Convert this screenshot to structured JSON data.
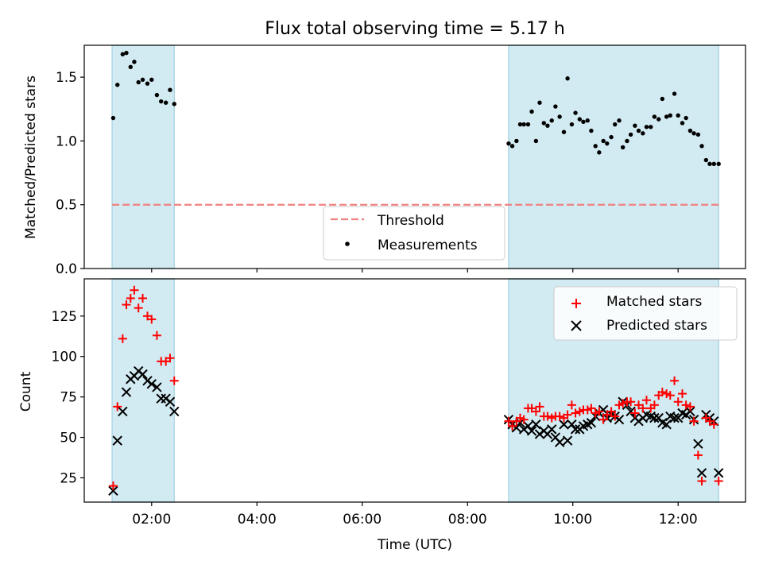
{
  "chart_data": {
    "title": "Flux total observing time = 5.17 h",
    "xlabel": "Time (UTC)",
    "x_tick_labels": [
      "02:00",
      "04:00",
      "06:00",
      "08:00",
      "10:00",
      "12:00"
    ],
    "x_ticks_hours": [
      2,
      4,
      6,
      8,
      10,
      12
    ],
    "xlim_hours": [
      0.72,
      13.28
    ],
    "shaded_intervals_hours": [
      [
        1.25,
        2.43
      ],
      [
        8.78,
        12.77
      ]
    ],
    "colors": {
      "shade": "#add8e6",
      "threshold": "#f08080",
      "matched": "#ff0000",
      "predicted": "#000000",
      "measurements": "#000000"
    },
    "panels": [
      {
        "type": "scatter",
        "ylabel": "Matched/Predicted stars",
        "ylim": [
          0,
          1.75
        ],
        "y_ticks": [
          0.0,
          0.5,
          1.0,
          1.5
        ],
        "y_tick_labels": [
          "0.0",
          "0.5",
          "1.0",
          "1.5"
        ],
        "legend_position": "bottom-center",
        "threshold": {
          "name": "Threshold",
          "value": 0.5
        },
        "series": [
          {
            "name": "Measurements",
            "marker": "dot",
            "x_hours": [
              1.27,
              1.35,
              1.45,
              1.52,
              1.6,
              1.67,
              1.75,
              1.83,
              1.92,
              2.0,
              2.1,
              2.18,
              2.27,
              2.35,
              2.43,
              8.78,
              8.85,
              8.93,
              9.0,
              9.07,
              9.15,
              9.22,
              9.3,
              9.37,
              9.45,
              9.52,
              9.6,
              9.67,
              9.75,
              9.83,
              9.9,
              9.98,
              10.05,
              10.13,
              10.2,
              10.28,
              10.35,
              10.43,
              10.5,
              10.58,
              10.65,
              10.73,
              10.8,
              10.88,
              10.95,
              11.03,
              11.1,
              11.18,
              11.25,
              11.33,
              11.4,
              11.48,
              11.55,
              11.63,
              11.7,
              11.78,
              11.85,
              11.93,
              12.0,
              12.08,
              12.15,
              12.23,
              12.3,
              12.38,
              12.45,
              12.53,
              12.6,
              12.68,
              12.77
            ],
            "values": [
              1.18,
              1.44,
              1.68,
              1.69,
              1.58,
              1.62,
              1.46,
              1.48,
              1.45,
              1.48,
              1.36,
              1.31,
              1.3,
              1.4,
              1.29,
              0.98,
              0.96,
              1.0,
              1.13,
              1.13,
              1.13,
              1.23,
              1.0,
              1.3,
              1.14,
              1.12,
              1.16,
              1.27,
              1.19,
              1.07,
              1.49,
              1.13,
              1.22,
              1.17,
              1.15,
              1.16,
              1.08,
              0.96,
              0.91,
              1.0,
              0.98,
              1.03,
              1.13,
              1.16,
              0.95,
              1.0,
              1.05,
              1.12,
              1.08,
              1.06,
              1.11,
              1.11,
              1.19,
              1.17,
              1.33,
              1.19,
              1.2,
              1.37,
              1.2,
              1.14,
              1.18,
              1.08,
              1.06,
              1.05,
              0.96,
              0.85,
              0.82,
              0.82,
              0.82
            ]
          }
        ]
      },
      {
        "type": "scatter",
        "ylabel": "Count",
        "ylim": [
          10,
          148
        ],
        "y_ticks": [
          25,
          50,
          75,
          100,
          125
        ],
        "y_tick_labels": [
          "25",
          "50",
          "75",
          "100",
          "125"
        ],
        "legend_position": "top-right",
        "series": [
          {
            "name": "Matched stars",
            "marker": "plus",
            "x_hours": [
              1.27,
              1.35,
              1.45,
              1.52,
              1.6,
              1.67,
              1.75,
              1.83,
              1.92,
              2.0,
              2.1,
              2.18,
              2.27,
              2.35,
              2.43,
              8.78,
              8.85,
              8.93,
              9.0,
              9.07,
              9.15,
              9.22,
              9.3,
              9.37,
              9.45,
              9.52,
              9.6,
              9.67,
              9.75,
              9.83,
              9.9,
              9.98,
              10.05,
              10.13,
              10.2,
              10.28,
              10.35,
              10.43,
              10.5,
              10.58,
              10.65,
              10.73,
              10.8,
              10.88,
              10.95,
              11.03,
              11.1,
              11.18,
              11.25,
              11.33,
              11.4,
              11.48,
              11.55,
              11.63,
              11.7,
              11.78,
              11.85,
              11.93,
              12.0,
              12.08,
              12.15,
              12.23,
              12.3,
              12.38,
              12.45,
              12.53,
              12.6,
              12.68,
              12.77
            ],
            "values": [
              20,
              69,
              111,
              132,
              136,
              141,
              130,
              136,
              125,
              123,
              113,
              97,
              97,
              99,
              85,
              60,
              57,
              60,
              62,
              61,
              68,
              68,
              66,
              69,
              63,
              63,
              62,
              63,
              63,
              62,
              64,
              70,
              65,
              66,
              67,
              67,
              68,
              65,
              66,
              61,
              64,
              66,
              63,
              70,
              71,
              72,
              72,
              65,
              70,
              68,
              73,
              68,
              70,
              76,
              78,
              77,
              76,
              85,
              72,
              77,
              70,
              69,
              60,
              39,
              23,
              62,
              60,
              58,
              23
            ]
          },
          {
            "name": "Predicted stars",
            "marker": "x",
            "x_hours": [
              1.27,
              1.35,
              1.45,
              1.52,
              1.6,
              1.67,
              1.75,
              1.83,
              1.92,
              2.0,
              2.1,
              2.18,
              2.27,
              2.35,
              2.43,
              8.78,
              8.85,
              8.93,
              9.0,
              9.07,
              9.15,
              9.22,
              9.3,
              9.37,
              9.45,
              9.52,
              9.6,
              9.67,
              9.75,
              9.83,
              9.9,
              9.98,
              10.05,
              10.13,
              10.2,
              10.28,
              10.35,
              10.43,
              10.5,
              10.58,
              10.65,
              10.73,
              10.8,
              10.88,
              10.95,
              11.03,
              11.1,
              11.18,
              11.25,
              11.33,
              11.4,
              11.48,
              11.55,
              11.63,
              11.7,
              11.78,
              11.85,
              11.93,
              12.0,
              12.08,
              12.15,
              12.23,
              12.3,
              12.38,
              12.45,
              12.53,
              12.6,
              12.68,
              12.77
            ],
            "values": [
              17,
              48,
              66,
              78,
              86,
              88,
              91,
              89,
              85,
              83,
              81,
              74,
              74,
              72,
              66,
              61,
              58,
              56,
              59,
              55,
              57,
              54,
              58,
              52,
              54,
              52,
              55,
              50,
              47,
              58,
              48,
              58,
              55,
              55,
              57,
              58,
              59,
              63,
              65,
              67,
              62,
              64,
              63,
              61,
              72,
              70,
              66,
              62,
              60,
              62,
              64,
              63,
              62,
              62,
              59,
              58,
              63,
              62,
              62,
              65,
              64,
              66,
              61,
              46,
              28,
              64,
              62,
              60,
              28
            ]
          }
        ]
      }
    ]
  }
}
